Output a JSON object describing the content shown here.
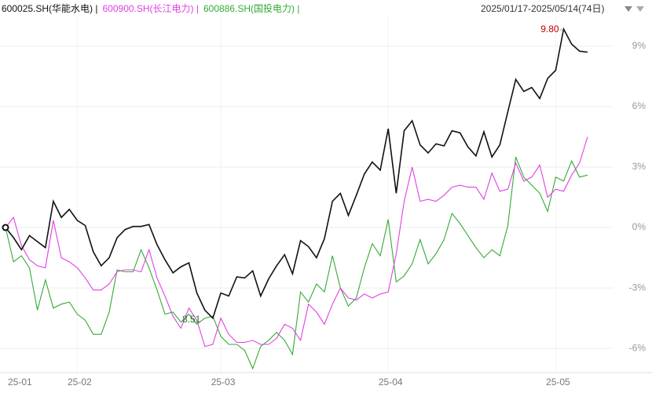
{
  "chart_data": {
    "type": "line",
    "header": {
      "range": "2025/01/17-2025/05/14(74日)"
    },
    "categories": [
      "25-01",
      null,
      null,
      null,
      null,
      null,
      null,
      null,
      null,
      "25-02",
      null,
      null,
      null,
      null,
      null,
      null,
      null,
      null,
      null,
      null,
      null,
      null,
      null,
      null,
      null,
      null,
      null,
      "25-03",
      null,
      null,
      null,
      null,
      null,
      null,
      null,
      null,
      null,
      null,
      null,
      null,
      null,
      null,
      null,
      null,
      null,
      null,
      null,
      null,
      "25-04",
      null,
      null,
      null,
      null,
      null,
      null,
      null,
      null,
      null,
      null,
      null,
      null,
      null,
      null,
      null,
      null,
      null,
      null,
      null,
      null,
      "25-05",
      null,
      null,
      null,
      null
    ],
    "series": [
      {
        "name": "600025.SH(华能水电) |",
        "color": "#111111",
        "values": [
          0,
          -0.5,
          -1.1,
          -0.4,
          -0.7,
          -1.0,
          1.3,
          0.5,
          0.9,
          0.35,
          0.1,
          -1.2,
          -1.9,
          -1.5,
          -0.5,
          -0.1,
          0.05,
          0.05,
          0.15,
          -0.85,
          -1.6,
          -2.25,
          -1.95,
          -1.75,
          -3.25,
          -4.1,
          -4.5,
          -3.25,
          -3.4,
          -2.45,
          -2.5,
          -2.15,
          -3.4,
          -2.55,
          -1.9,
          -1.35,
          -2.3,
          -0.65,
          -0.95,
          -1.5,
          -0.55,
          1.3,
          1.7,
          0.6,
          1.6,
          2.65,
          3.25,
          2.85,
          4.9,
          1.7,
          4.8,
          5.3,
          4.1,
          3.7,
          4.15,
          4.05,
          4.8,
          4.7,
          4.0,
          3.55,
          4.75,
          3.5,
          4.1,
          5.75,
          7.35,
          6.75,
          6.95,
          6.4,
          7.4,
          7.8,
          9.85,
          9.1,
          8.75,
          8.7
        ]
      },
      {
        "name": "600900.SH(长江电力) |",
        "color": "#e040e0",
        "values": [
          0,
          0.5,
          -0.9,
          -1.6,
          -1.9,
          -2.0,
          0.35,
          -1.5,
          -1.7,
          -2.0,
          -2.5,
          -3.1,
          -3.1,
          -2.8,
          -2.2,
          -2.1,
          -2.1,
          -2.2,
          -1.1,
          -2.5,
          -3.4,
          -4.4,
          -5.0,
          -4.0,
          -4.6,
          -5.9,
          -5.8,
          -4.5,
          -5.3,
          -5.7,
          -5.7,
          -5.6,
          -5.8,
          -5.8,
          -5.5,
          -4.8,
          -5.0,
          -5.6,
          -3.8,
          -4.2,
          -4.8,
          -3.8,
          -3.0,
          -3.5,
          -3.6,
          -3.3,
          -3.5,
          -3.3,
          -3.2,
          -1.3,
          1.3,
          3.0,
          1.3,
          1.4,
          1.3,
          1.6,
          2.0,
          2.1,
          2.0,
          2.0,
          1.4,
          2.7,
          1.8,
          1.9,
          3.2,
          2.3,
          2.5,
          3.1,
          1.5,
          1.9,
          1.8,
          2.6,
          3.2,
          4.5
        ]
      },
      {
        "name": "600886.SH(国投电力) |",
        "color": "#33aa33",
        "values": [
          0,
          -1.7,
          -1.4,
          -2.0,
          -4.1,
          -2.6,
          -4.0,
          -3.8,
          -3.7,
          -4.3,
          -4.6,
          -5.3,
          -5.3,
          -4.2,
          -2.1,
          -2.2,
          -2.2,
          -1.1,
          -2.0,
          -3.1,
          -4.3,
          -4.2,
          -4.7,
          -4.3,
          -4.8,
          -4.5,
          -4.4,
          -5.4,
          -5.8,
          -5.8,
          -6.1,
          -7.0,
          -5.9,
          -5.6,
          -5.2,
          -5.6,
          -6.3,
          -3.2,
          -3.7,
          -2.8,
          -3.2,
          -1.4,
          -3.0,
          -3.9,
          -3.5,
          -2.0,
          -0.8,
          -1.4,
          0.4,
          -2.7,
          -2.4,
          -1.8,
          -0.6,
          -1.8,
          -1.3,
          -0.6,
          0.7,
          0.2,
          -0.4,
          -1.0,
          -1.5,
          -1.1,
          -1.4,
          0.1,
          3.5,
          2.5,
          2.1,
          1.7,
          0.8,
          2.5,
          2.3,
          3.3,
          2.5,
          2.6
        ]
      }
    ],
    "annotations": [
      "9.80",
      "8.51"
    ],
    "ylim": [
      -7.2,
      10.9
    ],
    "yticks": [
      {
        "value": 9,
        "label": "9%"
      },
      {
        "value": 6,
        "label": "6%"
      },
      {
        "value": 3,
        "label": "3%"
      },
      {
        "value": 0,
        "label": "0%"
      },
      {
        "value": -3,
        "label": "-3%"
      },
      {
        "value": -6,
        "label": "-6%"
      }
    ],
    "grid": true
  }
}
